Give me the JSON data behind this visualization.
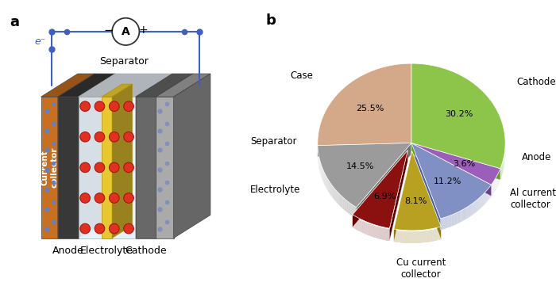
{
  "pie_labels": [
    "Cathode",
    "Anode",
    "Al current\ncollector",
    "Cu current\ncollector",
    "Electrolyte",
    "Separator",
    "Case"
  ],
  "pie_values": [
    25.5,
    14.5,
    6.9,
    8.1,
    11.2,
    3.6,
    30.2
  ],
  "pie_colors": [
    "#D4A98A",
    "#9B9B9B",
    "#8B1010",
    "#B8A020",
    "#8090C4",
    "#9B5FBB",
    "#8DC44A"
  ],
  "pie_side_colors": [
    "#B08060",
    "#707070",
    "#600000",
    "#8B7515",
    "#5060A0",
    "#6B3F8B",
    "#60A020"
  ],
  "pie_explode_idx": [
    2,
    3
  ],
  "pie_explode_amt": 0.1,
  "label_a": "a",
  "label_b": "b",
  "bg_color": "#FFFFFF",
  "startangle": 90,
  "pie_depth": 0.12,
  "wire_color": "#4060C0",
  "ammeter_color": "#333333",
  "li_color": "#CC2020",
  "ion_color_face": "#E03020",
  "ion_color_edge": "#A01010",
  "blue_dot_color": "#6080C8",
  "orange_cc": "#C87020",
  "black_anode": "#383838",
  "gray_cathode": "#686868",
  "silver_cc": "#AAAAAA",
  "yellow_sep": "#E8C830",
  "elec_bg": "#E8F0F8"
}
